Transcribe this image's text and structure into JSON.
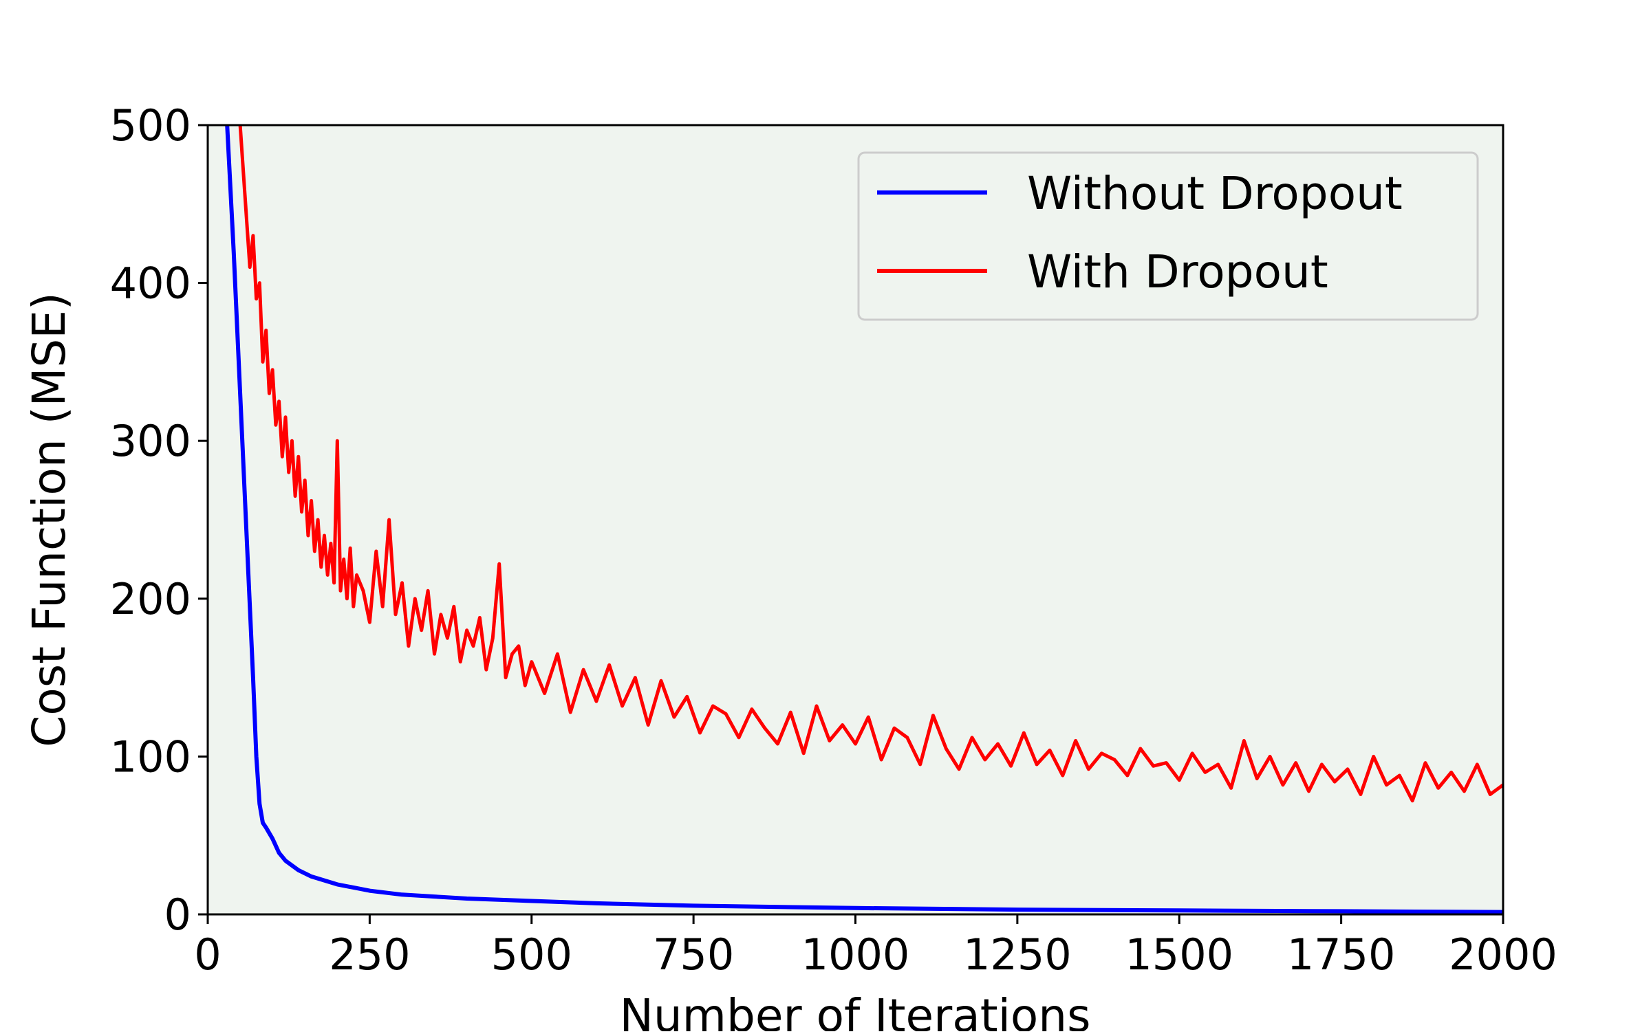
{
  "chart_data": {
    "type": "line",
    "xlabel": "Number of Iterations",
    "ylabel": "Cost Function (MSE)",
    "xlim": [
      0,
      2000
    ],
    "ylim": [
      0,
      500
    ],
    "xticks": [
      0,
      250,
      500,
      750,
      1000,
      1250,
      1500,
      1750,
      2000
    ],
    "yticks": [
      0,
      100,
      200,
      300,
      400,
      500
    ],
    "xtick_labels": [
      "0",
      "250",
      "500",
      "750",
      "1000",
      "1250",
      "1500",
      "1750",
      "2000"
    ],
    "ytick_labels": [
      "0",
      "100",
      "200",
      "300",
      "400",
      "500"
    ],
    "grid": false,
    "plot_background": "#eff4ef",
    "legend_position": "top-right",
    "series": [
      {
        "name": "Without Dropout",
        "color": "#0000ff",
        "x": [
          20,
          30,
          40,
          50,
          60,
          70,
          75,
          80,
          85,
          90,
          100,
          110,
          120,
          140,
          160,
          200,
          250,
          300,
          400,
          500,
          600,
          750,
          1000,
          1250,
          1500,
          1750,
          2000
        ],
        "y": [
          600,
          500,
          420,
          330,
          240,
          150,
          100,
          70,
          58,
          55,
          48,
          39,
          34,
          28,
          24,
          19,
          15,
          12.5,
          10,
          8.5,
          7,
          5.5,
          4,
          3,
          2.5,
          2,
          1.5
        ]
      },
      {
        "name": "With Dropout",
        "color": "#ff0000",
        "x": [
          50,
          55,
          60,
          65,
          70,
          75,
          80,
          85,
          90,
          95,
          100,
          105,
          110,
          115,
          120,
          125,
          130,
          135,
          140,
          145,
          150,
          155,
          160,
          165,
          170,
          175,
          180,
          185,
          190,
          195,
          200,
          205,
          210,
          215,
          220,
          225,
          230,
          240,
          250,
          260,
          270,
          280,
          290,
          300,
          310,
          320,
          330,
          340,
          350,
          360,
          370,
          380,
          390,
          400,
          410,
          420,
          430,
          440,
          450,
          460,
          470,
          480,
          490,
          500,
          520,
          540,
          560,
          580,
          600,
          620,
          640,
          660,
          680,
          700,
          720,
          740,
          760,
          780,
          800,
          820,
          840,
          860,
          880,
          900,
          920,
          940,
          960,
          980,
          1000,
          1020,
          1040,
          1060,
          1080,
          1100,
          1120,
          1140,
          1160,
          1180,
          1200,
          1220,
          1240,
          1260,
          1280,
          1300,
          1320,
          1340,
          1360,
          1380,
          1400,
          1420,
          1440,
          1460,
          1480,
          1500,
          1520,
          1540,
          1560,
          1580,
          1600,
          1620,
          1640,
          1660,
          1680,
          1700,
          1720,
          1740,
          1760,
          1780,
          1800,
          1820,
          1840,
          1860,
          1880,
          1900,
          1920,
          1940,
          1960,
          1980,
          2000
        ],
        "y": [
          500,
          470,
          440,
          410,
          430,
          390,
          400,
          350,
          370,
          330,
          345,
          310,
          325,
          290,
          315,
          280,
          300,
          265,
          290,
          255,
          275,
          240,
          262,
          230,
          250,
          220,
          240,
          215,
          235,
          210,
          300,
          205,
          225,
          200,
          232,
          195,
          215,
          205,
          185,
          230,
          195,
          250,
          190,
          210,
          170,
          200,
          180,
          205,
          165,
          190,
          175,
          195,
          160,
          180,
          170,
          188,
          155,
          175,
          222,
          150,
          165,
          170,
          145,
          160,
          140,
          165,
          128,
          155,
          135,
          158,
          132,
          150,
          120,
          148,
          125,
          138,
          115,
          132,
          127,
          112,
          130,
          118,
          108,
          128,
          102,
          132,
          110,
          120,
          108,
          125,
          98,
          118,
          112,
          95,
          126,
          105,
          92,
          112,
          98,
          108,
          94,
          115,
          95,
          104,
          88,
          110,
          92,
          102,
          98,
          88,
          105,
          94,
          96,
          85,
          102,
          90,
          95,
          80,
          110,
          86,
          100,
          82,
          96,
          78,
          95,
          84,
          92,
          76,
          100,
          82,
          88,
          72,
          96,
          80,
          90,
          78,
          95,
          76,
          82
        ]
      }
    ]
  }
}
